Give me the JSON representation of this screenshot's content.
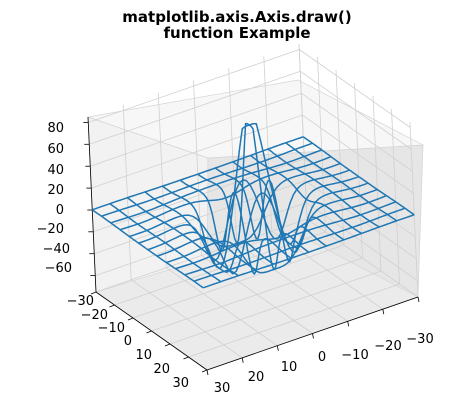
{
  "chart_data": {
    "type": "wireframe-3d",
    "title": [
      "matplotlib.axis.Axis.draw()",
      "function Example"
    ],
    "xlabel": "",
    "ylabel": "",
    "zlabel": "",
    "x_ticks": [
      "−30",
      "−20",
      "−10",
      "0",
      "10",
      "20",
      "30"
    ],
    "y_ticks": [
      "30",
      "20",
      "10",
      "0",
      "−10",
      "−20",
      "−30"
    ],
    "z_ticks": [
      "80",
      "60",
      "40",
      "20",
      "0",
      "−20",
      "−40",
      "−60"
    ],
    "xlim": [
      -30,
      30
    ],
    "ylim": [
      -30,
      30
    ],
    "zlim": [
      -75,
      85
    ],
    "grid": true,
    "color": "#1f77b4",
    "surface": {
      "x_range": [
        -30,
        30
      ],
      "y_range": [
        -30,
        30
      ],
      "step": 5,
      "peak_z": 80,
      "trough_z": -65
    }
  }
}
